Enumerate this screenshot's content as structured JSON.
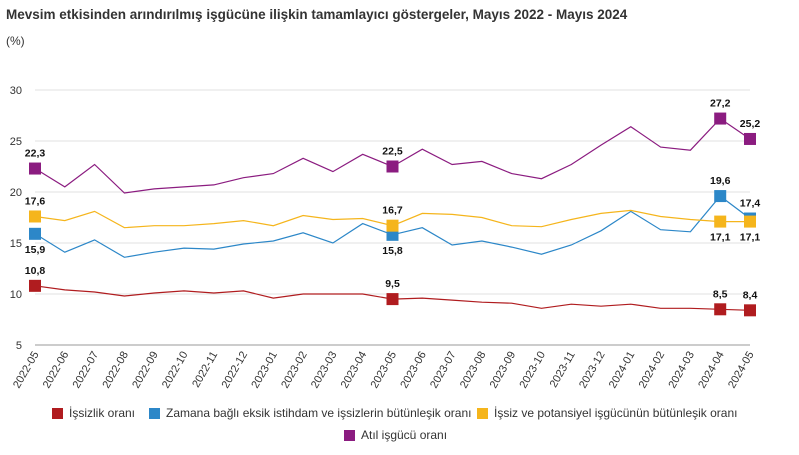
{
  "title": "Mevsim etkisinden arındırılmış işgücüne ilişkin tamamlayıcı göstergeler, Mayıs 2022 - Mayıs 2024",
  "unit_label": "(%)",
  "chart_data": {
    "type": "line",
    "title": "Mevsim etkisinden arındırılmış işgücüne ilişkin tamamlayıcı göstergeler, Mayıs 2022 - Mayıs 2024",
    "ylabel": "(%)",
    "ylim": [
      5,
      30
    ],
    "yticks": [
      "5",
      "10",
      "15",
      "20",
      "25",
      "30"
    ],
    "grid": "horizontal",
    "legend_position": "bottom",
    "categories": [
      "2022-05",
      "2022-06",
      "2022-07",
      "2022-08",
      "2022-09",
      "2022-10",
      "2022-11",
      "2022-12",
      "2023-01",
      "2023-02",
      "2023-03",
      "2023-04",
      "2023-05",
      "2023-06",
      "2023-07",
      "2023-08",
      "2023-09",
      "2023-10",
      "2023-11",
      "2023-12",
      "2024-01",
      "2024-02",
      "2024-03",
      "2024-04",
      "2024-05"
    ],
    "series": [
      {
        "name": "İşsizlik oranı",
        "color": "#b01c1f",
        "values": [
          10.8,
          10.4,
          10.2,
          9.8,
          10.1,
          10.3,
          10.1,
          10.3,
          9.6,
          10.0,
          10.0,
          10.0,
          9.5,
          9.6,
          9.4,
          9.2,
          9.1,
          8.6,
          9.0,
          8.8,
          9.0,
          8.6,
          8.6,
          8.5,
          8.4
        ],
        "labels": [
          {
            "index": 0,
            "text": "10,8",
            "pos": "above"
          },
          {
            "index": 12,
            "text": "9,5",
            "pos": "above"
          },
          {
            "index": 23,
            "text": "8,5",
            "pos": "above"
          },
          {
            "index": 24,
            "text": "8,4",
            "pos": "above"
          }
        ]
      },
      {
        "name": "Zamana bağlı eksik istihdam ve işsizlerin bütünleşik oranı",
        "color": "#2c87c8",
        "values": [
          15.9,
          14.1,
          15.3,
          13.6,
          14.1,
          14.5,
          14.4,
          14.9,
          15.2,
          16.0,
          15.0,
          16.9,
          15.8,
          16.5,
          14.8,
          15.2,
          14.6,
          13.9,
          14.8,
          16.2,
          18.1,
          16.3,
          16.1,
          19.6,
          17.4
        ],
        "labels": [
          {
            "index": 0,
            "text": "15,9",
            "pos": "below"
          },
          {
            "index": 12,
            "text": "15,8",
            "pos": "below"
          },
          {
            "index": 23,
            "text": "19,6",
            "pos": "above"
          },
          {
            "index": 24,
            "text": "17,4",
            "pos": "above"
          }
        ]
      },
      {
        "name": "İşsiz ve potansiyel işgücünün bütünleşik oranı",
        "color": "#f5b51c",
        "values": [
          17.6,
          17.2,
          18.1,
          16.5,
          16.7,
          16.7,
          16.9,
          17.2,
          16.7,
          17.7,
          17.3,
          17.4,
          16.7,
          17.9,
          17.8,
          17.5,
          16.7,
          16.6,
          17.3,
          17.9,
          18.2,
          17.6,
          17.3,
          17.1,
          17.1
        ],
        "labels": [
          {
            "index": 0,
            "text": "17,6",
            "pos": "above"
          },
          {
            "index": 12,
            "text": "16,7",
            "pos": "above"
          },
          {
            "index": 23,
            "text": "17,1",
            "pos": "below"
          },
          {
            "index": 24,
            "text": "17,1",
            "pos": "below"
          }
        ]
      },
      {
        "name": "Atıl işgücü oranı",
        "color": "#8b1c80",
        "values": [
          22.3,
          20.5,
          22.7,
          19.9,
          20.3,
          20.5,
          20.7,
          21.4,
          21.8,
          23.3,
          22.0,
          23.7,
          22.5,
          24.2,
          22.7,
          23.0,
          21.8,
          21.3,
          22.7,
          24.6,
          26.4,
          24.4,
          24.1,
          27.2,
          25.2
        ],
        "labels": [
          {
            "index": 0,
            "text": "22,3",
            "pos": "above"
          },
          {
            "index": 12,
            "text": "22,5",
            "pos": "above"
          },
          {
            "index": 23,
            "text": "27,2",
            "pos": "above"
          },
          {
            "index": 24,
            "text": "25,2",
            "pos": "above"
          }
        ]
      }
    ],
    "markers_at": [
      0,
      12,
      23,
      24
    ]
  }
}
